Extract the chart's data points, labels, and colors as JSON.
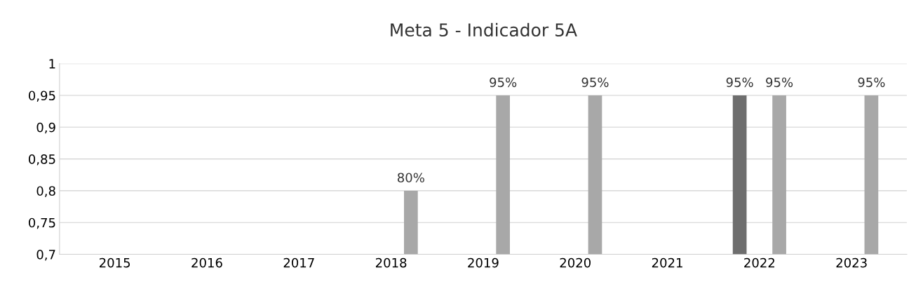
{
  "chart_data": {
    "type": "bar",
    "title": "Meta 5 - Indicador 5A",
    "categories": [
      "2015",
      "2016",
      "2017",
      "2018",
      "2019",
      "2020",
      "2021",
      "2022",
      "2023"
    ],
    "series": [
      {
        "color": "#6e6e6e",
        "values": [
          null,
          null,
          null,
          null,
          null,
          null,
          null,
          0.95,
          null
        ],
        "value_labels": [
          null,
          null,
          null,
          null,
          null,
          null,
          null,
          "95%",
          null
        ]
      },
      {
        "color": "#a8a8a8",
        "values": [
          null,
          null,
          null,
          0.8,
          0.95,
          0.95,
          null,
          0.95,
          0.95
        ],
        "value_labels": [
          null,
          null,
          null,
          "80%",
          "95%",
          "95%",
          null,
          "95%",
          "95%"
        ]
      }
    ],
    "ylim": [
      0.7,
      1
    ],
    "yticks": [
      {
        "value": 0.7,
        "label": "0,7"
      },
      {
        "value": 0.75,
        "label": "0,75"
      },
      {
        "value": 0.8,
        "label": "0,8"
      },
      {
        "value": 0.85,
        "label": "0,85"
      },
      {
        "value": 0.9,
        "label": "0,9"
      },
      {
        "value": 0.95,
        "label": "0,95"
      },
      {
        "value": 1,
        "label": "1"
      }
    ],
    "grid": "y",
    "legend": false
  }
}
